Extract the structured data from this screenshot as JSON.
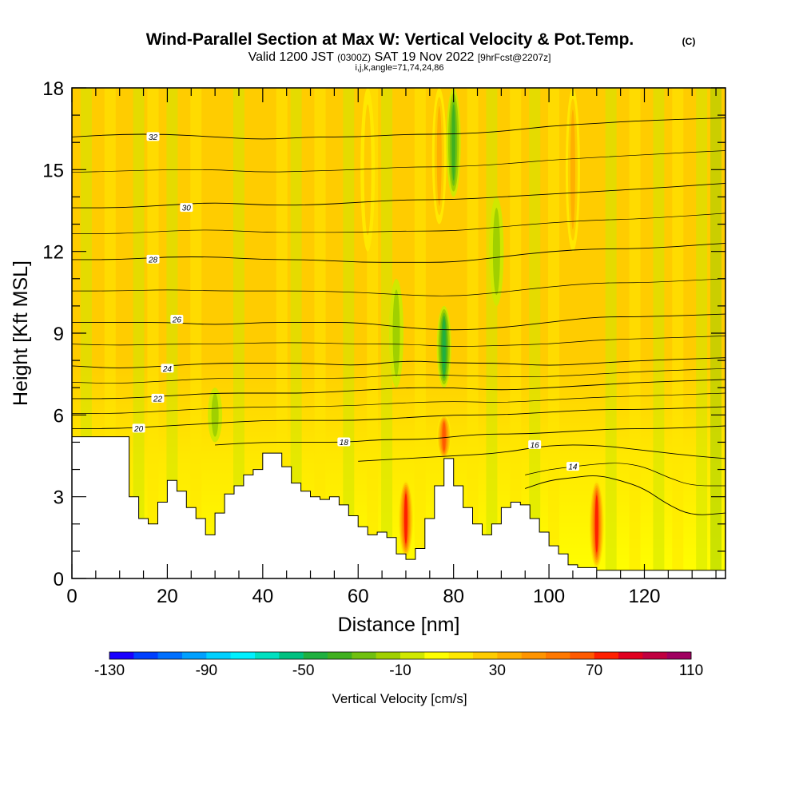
{
  "chart_data": {
    "type": "heatmap",
    "title": "Wind-Parallel Section at Max W: Vertical Velocity & Pot.Temp.",
    "title_mark": "(C)",
    "subtitle_parts": [
      "Valid 1200 JST",
      "(0300Z)",
      "SAT 19 Nov 2022",
      "[9hrFcst@2207z]"
    ],
    "subtitle2": "i,j,k,angle=71,74,24,86",
    "xlabel": "Distance [nm]",
    "ylabel": "Height [Kft MSL]",
    "xlim": [
      0,
      137
    ],
    "ylim": [
      0,
      18
    ],
    "x_ticks": [
      "0",
      "20",
      "40",
      "60",
      "80",
      "100",
      "120"
    ],
    "x_tick_values": [
      0,
      20,
      40,
      60,
      80,
      100,
      120
    ],
    "y_ticks": [
      "0",
      "3",
      "6",
      "9",
      "12",
      "15",
      "18"
    ],
    "y_tick_values": [
      0,
      3,
      6,
      9,
      12,
      15,
      18
    ],
    "colorbar": {
      "label": "Vertical Velocity [cm/s]",
      "min": -130,
      "max": 110,
      "step": 10,
      "tick_labels": [
        "-130",
        "-90",
        "-50",
        "-10",
        "30",
        "70",
        "110"
      ],
      "tick_values": [
        -130,
        -90,
        -50,
        -10,
        30,
        70,
        110
      ],
      "colors": [
        "#1a00ff",
        "#0040ff",
        "#0070ff",
        "#00a0ff",
        "#00d0ff",
        "#00f0ff",
        "#00e0c0",
        "#00c080",
        "#20b040",
        "#40b020",
        "#70c010",
        "#a0d000",
        "#d0e800",
        "#ffff00",
        "#ffe800",
        "#ffcc00",
        "#ffb000",
        "#ff9400",
        "#ff7800",
        "#ff5a00",
        "#ff2000",
        "#e00020",
        "#c00040",
        "#a00060",
        "#800080"
      ]
    },
    "terrain_heights_kft": [
      [
        0,
        5.2
      ],
      [
        2,
        5.2
      ],
      [
        4,
        5.2
      ],
      [
        6,
        5.2
      ],
      [
        8,
        5.2
      ],
      [
        10,
        5.2
      ],
      [
        12,
        3
      ],
      [
        14,
        2.2
      ],
      [
        16,
        2
      ],
      [
        18,
        2.8
      ],
      [
        20,
        3.6
      ],
      [
        22,
        3.2
      ],
      [
        24,
        2.6
      ],
      [
        26,
        2.2
      ],
      [
        28,
        1.6
      ],
      [
        30,
        2.4
      ],
      [
        32,
        3.1
      ],
      [
        34,
        3.4
      ],
      [
        36,
        3.8
      ],
      [
        38,
        4
      ],
      [
        40,
        4.6
      ],
      [
        42,
        4.6
      ],
      [
        44,
        4.1
      ],
      [
        46,
        3.5
      ],
      [
        48,
        3.2
      ],
      [
        50,
        3
      ],
      [
        52,
        2.9
      ],
      [
        54,
        3
      ],
      [
        56,
        2.7
      ],
      [
        58,
        2.3
      ],
      [
        60,
        1.9
      ],
      [
        62,
        1.6
      ],
      [
        64,
        1.7
      ],
      [
        66,
        1.5
      ],
      [
        68,
        0.9
      ],
      [
        70,
        0.7
      ],
      [
        72,
        1.1
      ],
      [
        74,
        2.2
      ],
      [
        76,
        3.4
      ],
      [
        78,
        4.4
      ],
      [
        80,
        3.4
      ],
      [
        82,
        2.6
      ],
      [
        84,
        2
      ],
      [
        86,
        1.6
      ],
      [
        88,
        2
      ],
      [
        90,
        2.6
      ],
      [
        92,
        2.8
      ],
      [
        94,
        2.7
      ],
      [
        96,
        2.2
      ],
      [
        98,
        1.7
      ],
      [
        100,
        1.2
      ],
      [
        102,
        0.9
      ],
      [
        104,
        0.5
      ],
      [
        106,
        0.4
      ],
      [
        108,
        0.4
      ],
      [
        110,
        0.3
      ],
      [
        112,
        0.3
      ],
      [
        114,
        0.3
      ],
      [
        116,
        0.3
      ],
      [
        118,
        0.3
      ],
      [
        120,
        0.3
      ],
      [
        122,
        0.3
      ],
      [
        124,
        0.3
      ],
      [
        126,
        0.3
      ],
      [
        128,
        0.3
      ],
      [
        130,
        0.3
      ],
      [
        132,
        0.3
      ],
      [
        134,
        0.3
      ],
      [
        137,
        0.3
      ]
    ],
    "updraft_cores": [
      {
        "x": 70,
        "y_range": [
          0.8,
          3.6
        ],
        "w": 70
      },
      {
        "x": 78,
        "y_range": [
          4.4,
          6
        ],
        "w": 60
      },
      {
        "x": 110,
        "y_range": [
          0.4,
          3.6
        ],
        "w": 70
      },
      {
        "x": 77,
        "y_range": [
          13,
          18
        ],
        "w": 30
      },
      {
        "x": 105,
        "y_range": [
          12,
          18
        ],
        "w": 30
      },
      {
        "x": 62,
        "y_range": [
          12,
          18
        ],
        "w": 20
      }
    ],
    "downdraft_cores": [
      {
        "x": 80,
        "y_range": [
          14,
          18
        ],
        "w": -40
      },
      {
        "x": 78,
        "y_range": [
          7,
          10
        ],
        "w": -50
      },
      {
        "x": 68,
        "y_range": [
          7,
          11
        ],
        "w": -20
      },
      {
        "x": 30,
        "y_range": [
          5,
          7
        ],
        "w": -20
      },
      {
        "x": 89,
        "y_range": [
          10,
          14
        ],
        "w": -20
      }
    ],
    "theta_contours": [
      {
        "level": 14,
        "label": "14",
        "points": [
          [
            95,
            3.3
          ],
          [
            100,
            3.6
          ],
          [
            105,
            3.7
          ],
          [
            110,
            3.8
          ],
          [
            115,
            3.6
          ],
          [
            120,
            3.3
          ],
          [
            125,
            2.7
          ],
          [
            130,
            2.3
          ],
          [
            137,
            2.4
          ]
        ],
        "label_at": [
          105,
          4.1
        ]
      },
      {
        "level": 16,
        "label": "16",
        "points": [
          [
            60,
            4.3
          ],
          [
            70,
            4.4
          ],
          [
            80,
            4.5
          ],
          [
            90,
            4.6
          ],
          [
            100,
            4.9
          ],
          [
            110,
            4.9
          ],
          [
            120,
            4.7
          ],
          [
            130,
            4.5
          ],
          [
            137,
            4.4
          ]
        ],
        "label_at": [
          97,
          4.9
        ]
      },
      {
        "level": 18,
        "label": "18",
        "points": [
          [
            30,
            4.9
          ],
          [
            40,
            5
          ],
          [
            50,
            5
          ],
          [
            58,
            5
          ],
          [
            65,
            5.1
          ],
          [
            75,
            5.1
          ],
          [
            85,
            5.3
          ],
          [
            95,
            5.3
          ],
          [
            105,
            5.4
          ],
          [
            115,
            5.5
          ],
          [
            125,
            5.5
          ],
          [
            137,
            5.6
          ]
        ],
        "label_at": [
          57,
          5.0
        ]
      },
      {
        "level": 20,
        "label": "20",
        "points": [
          [
            0,
            5.5
          ],
          [
            10,
            5.5
          ],
          [
            20,
            5.6
          ],
          [
            30,
            5.7
          ],
          [
            40,
            5.8
          ],
          [
            50,
            5.8
          ],
          [
            60,
            5.8
          ],
          [
            70,
            5.9
          ],
          [
            80,
            6
          ],
          [
            90,
            6
          ],
          [
            100,
            6.1
          ],
          [
            110,
            6.2
          ],
          [
            120,
            6.2
          ],
          [
            137,
            6.3
          ]
        ],
        "label_at": [
          14,
          5.5
        ]
      },
      {
        "level": 22,
        "label": "22",
        "points": [
          [
            0,
            6.6
          ],
          [
            10,
            6.6
          ],
          [
            20,
            6.7
          ],
          [
            30,
            6.8
          ],
          [
            40,
            6.8
          ],
          [
            50,
            6.8
          ],
          [
            60,
            6.9
          ],
          [
            70,
            7
          ],
          [
            80,
            7
          ],
          [
            90,
            6.9
          ],
          [
            100,
            7
          ],
          [
            110,
            7.1
          ],
          [
            120,
            7.2
          ],
          [
            137,
            7.3
          ]
        ],
        "label_at": [
          18,
          6.6
        ]
      },
      {
        "level": 24,
        "label": "24",
        "points": [
          [
            0,
            7.8
          ],
          [
            10,
            7.7
          ],
          [
            20,
            7.8
          ],
          [
            30,
            7.9
          ],
          [
            40,
            7.9
          ],
          [
            50,
            7.9
          ],
          [
            60,
            7.8
          ],
          [
            70,
            8
          ],
          [
            80,
            7.9
          ],
          [
            90,
            7.9
          ],
          [
            100,
            7.8
          ],
          [
            110,
            7.9
          ],
          [
            120,
            8
          ],
          [
            137,
            8.1
          ]
        ],
        "label_at": [
          20,
          7.7
        ]
      },
      {
        "level": 26,
        "label": "26",
        "points": [
          [
            0,
            9.4
          ],
          [
            10,
            9.4
          ],
          [
            20,
            9.4
          ],
          [
            30,
            9.3
          ],
          [
            40,
            9.4
          ],
          [
            50,
            9.4
          ],
          [
            60,
            9.4
          ],
          [
            70,
            9.2
          ],
          [
            80,
            9.1
          ],
          [
            90,
            9.2
          ],
          [
            100,
            9.4
          ],
          [
            110,
            9.6
          ],
          [
            120,
            9.6
          ],
          [
            137,
            9.7
          ]
        ],
        "label_at": [
          22,
          9.5
        ]
      },
      {
        "level": 28,
        "label": "28",
        "points": [
          [
            0,
            11.7
          ],
          [
            10,
            11.7
          ],
          [
            20,
            11.8
          ],
          [
            30,
            11.8
          ],
          [
            40,
            11.7
          ],
          [
            50,
            11.7
          ],
          [
            60,
            11.6
          ],
          [
            70,
            11.6
          ],
          [
            80,
            11.6
          ],
          [
            90,
            11.8
          ],
          [
            100,
            12
          ],
          [
            110,
            12.1
          ],
          [
            120,
            12.1
          ],
          [
            137,
            12.3
          ]
        ],
        "label_at": [
          17,
          11.7
        ]
      },
      {
        "level": 30,
        "label": "30",
        "points": [
          [
            0,
            13.6
          ],
          [
            10,
            13.6
          ],
          [
            20,
            13.7
          ],
          [
            30,
            13.8
          ],
          [
            40,
            13.7
          ],
          [
            50,
            13.7
          ],
          [
            60,
            13.8
          ],
          [
            70,
            13.9
          ],
          [
            80,
            13.9
          ],
          [
            90,
            14
          ],
          [
            100,
            14.1
          ],
          [
            110,
            14.2
          ],
          [
            120,
            14.3
          ],
          [
            137,
            14.5
          ]
        ],
        "label_at": [
          24,
          13.6
        ]
      },
      {
        "level": 32,
        "label": "32",
        "points": [
          [
            0,
            16.2
          ],
          [
            10,
            16.3
          ],
          [
            20,
            16.3
          ],
          [
            30,
            16.2
          ],
          [
            40,
            16.1
          ],
          [
            50,
            16.2
          ],
          [
            60,
            16.2
          ],
          [
            70,
            16.3
          ],
          [
            80,
            16.3
          ],
          [
            90,
            16.4
          ],
          [
            100,
            16.6
          ],
          [
            110,
            16.7
          ],
          [
            120,
            16.8
          ],
          [
            137,
            16.9
          ]
        ],
        "label_at": [
          17,
          16.2
        ]
      }
    ]
  }
}
